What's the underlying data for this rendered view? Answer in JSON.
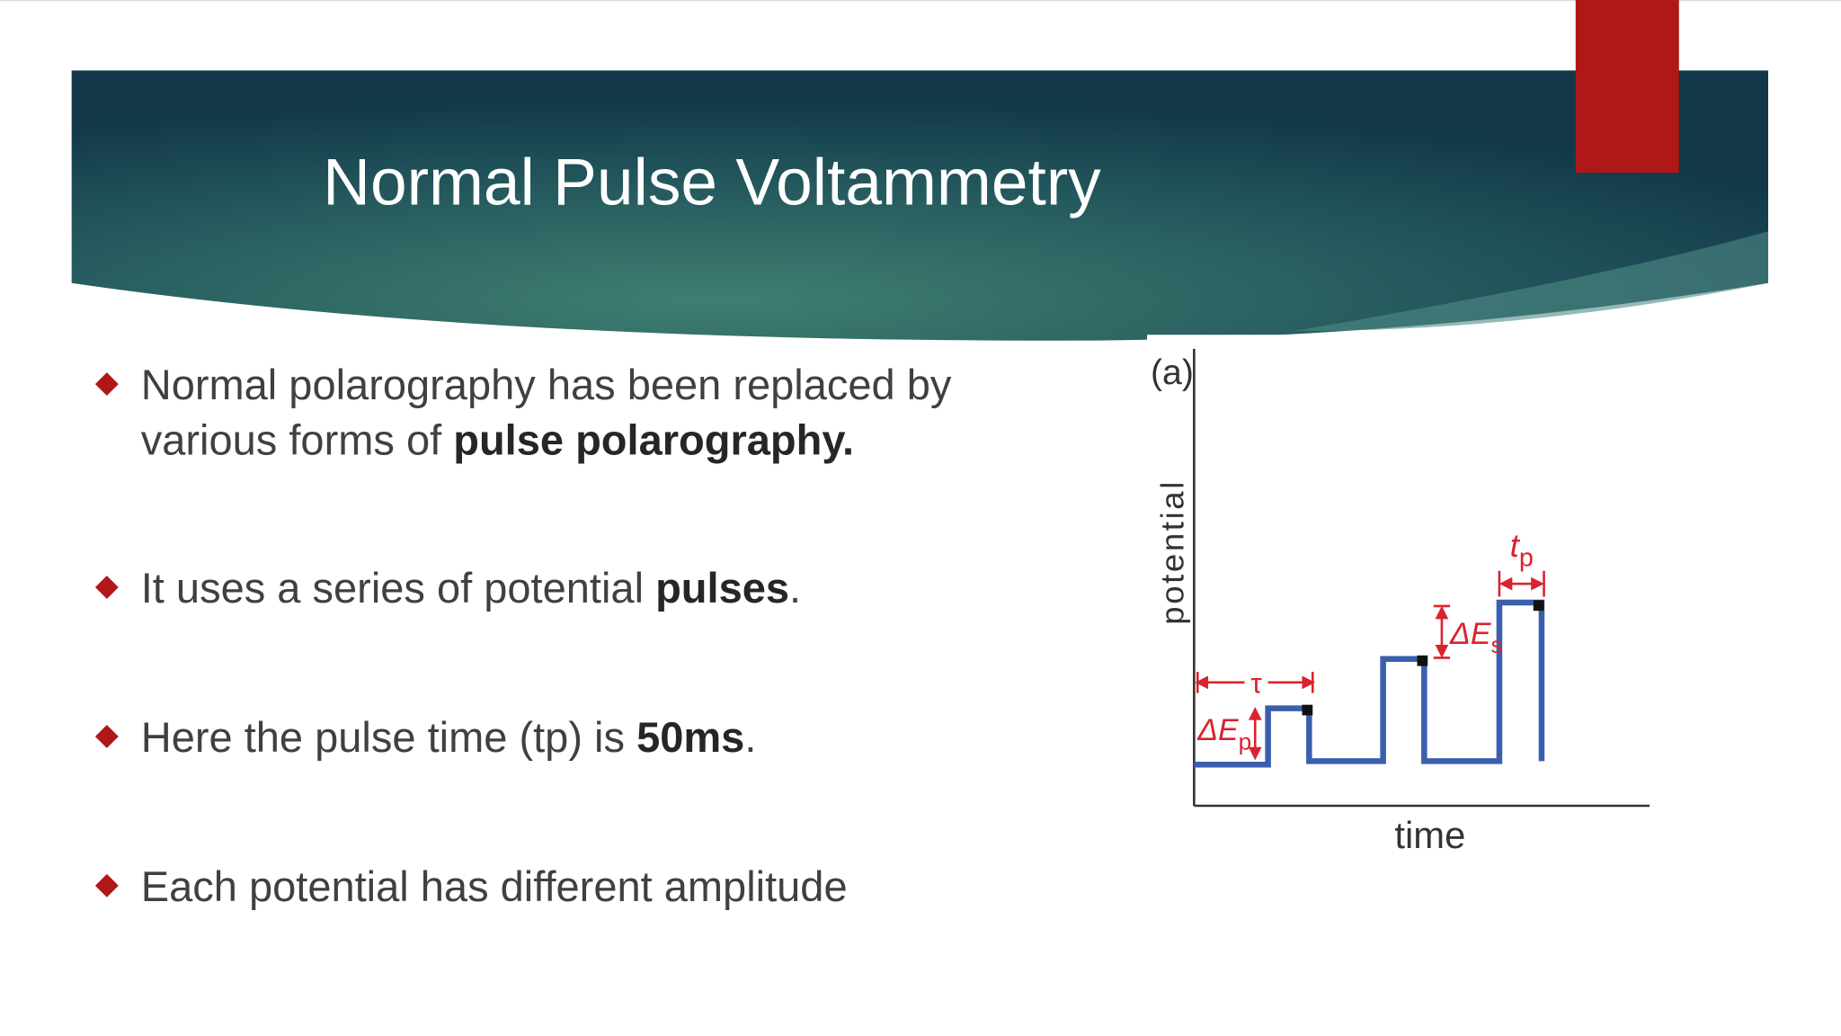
{
  "title": "Normal Pulse Voltammetry",
  "bullets": [
    {
      "lines": [
        [
          {
            "text": "Normal polarography has been replaced by",
            "bold": false
          }
        ],
        [
          {
            "text": "various forms of ",
            "bold": false
          },
          {
            "text": "pulse polarography.",
            "bold": true
          }
        ]
      ]
    },
    {
      "lines": [
        [
          {
            "text": "It uses a series of potential ",
            "bold": false
          },
          {
            "text": "pulses",
            "bold": true
          },
          {
            "text": ".",
            "bold": false
          }
        ]
      ]
    },
    {
      "lines": [
        [
          {
            "text": "Here the pulse time (tp) is ",
            "bold": false
          },
          {
            "text": "50ms",
            "bold": true
          },
          {
            "text": ".",
            "bold": false
          }
        ]
      ]
    },
    {
      "lines": [
        [
          {
            "text": "Each potential has different amplitude",
            "bold": false
          }
        ]
      ]
    }
  ],
  "figure": {
    "panel": "(a)",
    "y_label": "potential",
    "x_label": "time",
    "tau": "τ",
    "delta_ep": {
      "main": "ΔE",
      "sub": "p"
    },
    "delta_es": {
      "main": "ΔE",
      "sub": "s"
    },
    "tp": {
      "main": "t",
      "sub": "p"
    }
  }
}
